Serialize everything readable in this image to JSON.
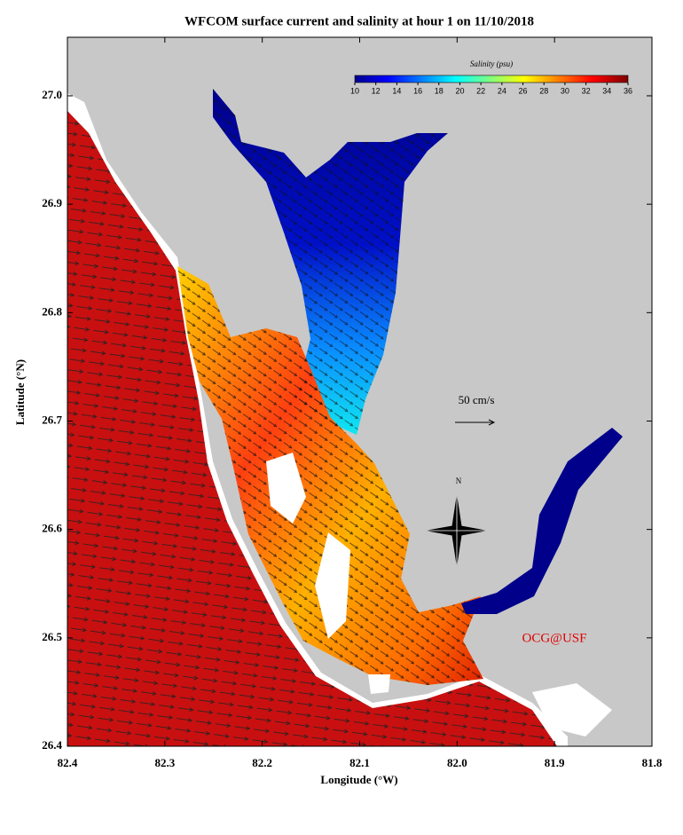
{
  "title": "WFCOM surface current and salinity at hour 1 on 11/10/2018",
  "x_label": "Longitude (°W)",
  "y_label": "Latitude (°N)",
  "xlim": [
    82.4,
    81.8
  ],
  "xticks": [
    82.4,
    82.3,
    82.2,
    82.1,
    {
      "value": 82,
      "label": "82.0"
    },
    81.9,
    81.8
  ],
  "ylim": [
    26.4,
    27.054
  ],
  "yticks": [
    26.4,
    26.5,
    26.6,
    26.7,
    26.8,
    26.9,
    {
      "value": 27,
      "label": "27.0"
    }
  ],
  "colorbar": {
    "label": "Salinity (psu)",
    "lim": [
      10,
      36
    ],
    "ticks": [
      10,
      12,
      14,
      16,
      18,
      20,
      22,
      24,
      26,
      28,
      30,
      32,
      34,
      36
    ]
  },
  "scale_label": "50 cm/s",
  "compass_label": "N",
  "credit": "OCG@USF"
}
